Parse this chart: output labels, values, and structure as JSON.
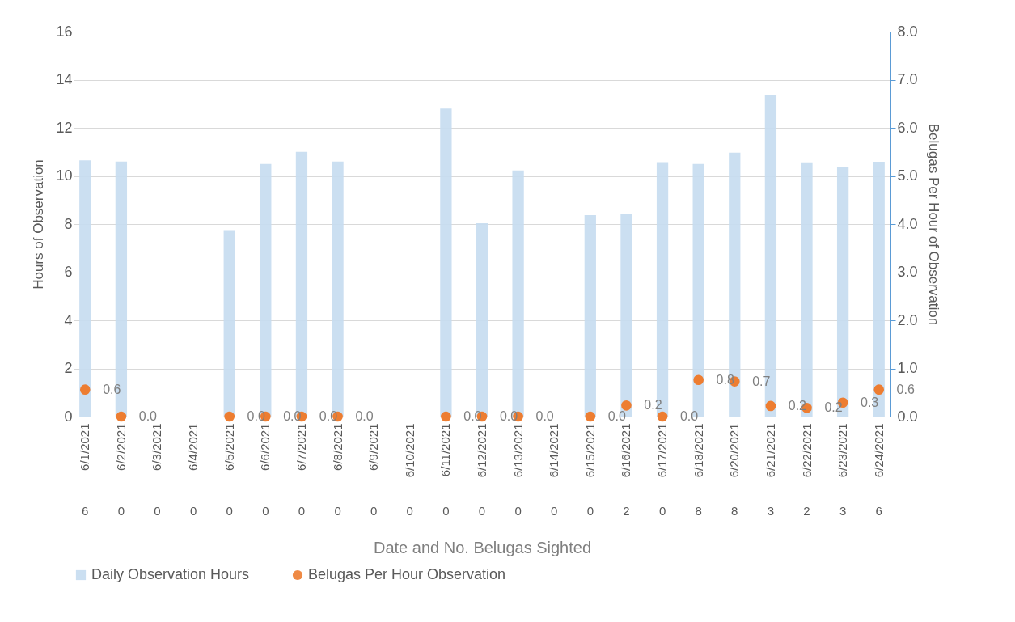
{
  "chart_data": {
    "type": "bar",
    "xlabel": "Date and No. Belugas Sighted",
    "ylabel": "Hours of Observation",
    "y2label": "Belugas Per Hour of Observation",
    "categories": [
      "6/1/2021",
      "6/2/2021",
      "6/3/2021",
      "6/4/2021",
      "6/5/2021",
      "6/6/2021",
      "6/7/2021",
      "6/8/2021",
      "6/9/2021",
      "6/10/2021",
      "6/11/2021",
      "6/12/2021",
      "6/13/2021",
      "6/14/2021",
      "6/15/2021",
      "6/16/2021",
      "6/17/2021",
      "6/18/2021",
      "6/20/2021",
      "6/21/2021",
      "6/22/2021",
      "6/23/2021",
      "6/24/2021"
    ],
    "series": [
      {
        "name": "Daily Observation Hours",
        "color": "#c5dbf0",
        "values": [
          10.65,
          10.6,
          null,
          null,
          7.75,
          10.5,
          11.0,
          10.6,
          null,
          null,
          12.8,
          8.03,
          10.23,
          null,
          8.37,
          8.43,
          10.57,
          10.5,
          10.97,
          13.36,
          10.56,
          10.37,
          10.59
        ]
      },
      {
        "name": "Belugas Per Hour Observation",
        "type": "scatter",
        "axis": "y2",
        "color": "#ed7d31",
        "marker": "circle",
        "values": [
          0.56,
          0,
          null,
          null,
          0,
          0,
          0,
          0,
          null,
          null,
          0,
          0,
          0,
          null,
          0,
          0.23,
          0,
          0.76,
          0.73,
          0.22,
          0.18,
          0.29,
          0.56
        ],
        "value_labels": [
          "0.6",
          "0.0",
          null,
          null,
          "0.0",
          "0.0",
          "0.0",
          "0.0",
          null,
          null,
          "0.0",
          "0.0",
          "0.0",
          null,
          "0.0",
          "0.2",
          "0.0",
          "0.8",
          "0.7",
          "0.2",
          "0.2",
          "0.3",
          "0.6"
        ]
      }
    ],
    "ylim": [
      0,
      16
    ],
    "yticks": [
      0,
      2,
      4,
      6,
      8,
      10,
      12,
      14,
      16
    ],
    "y2lim": [
      0,
      8
    ],
    "y2ticks": [
      {
        "value": 0,
        "label": "0.0"
      },
      {
        "value": 1,
        "label": "1.0"
      },
      {
        "value": 2,
        "label": "2.0"
      },
      {
        "value": 3,
        "label": "3.0"
      },
      {
        "value": 4,
        "label": "4.0"
      },
      {
        "value": 5,
        "label": "5.0"
      },
      {
        "value": 6,
        "label": "6.0"
      },
      {
        "value": 7,
        "label": "7.0"
      },
      {
        "value": 8,
        "label": "8.0"
      }
    ],
    "annotations": [
      "6",
      "0",
      "0",
      "0",
      "0",
      "0",
      "0",
      "0",
      "0",
      "0",
      "0",
      "0",
      "0",
      "0",
      "0",
      "2",
      "0",
      "8",
      "8",
      "3",
      "2",
      "3",
      "6"
    ],
    "grid": "y",
    "legend": "bottom"
  }
}
